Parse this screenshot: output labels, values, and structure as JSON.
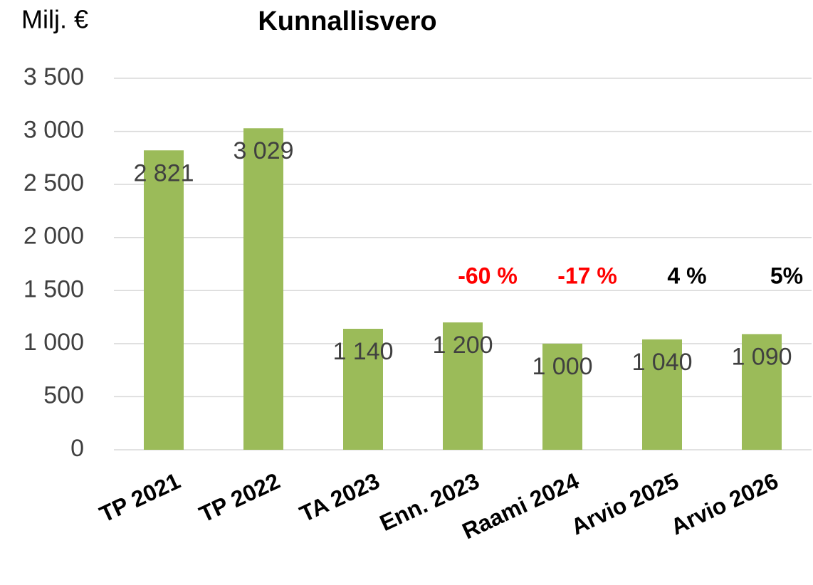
{
  "chart_data": {
    "type": "bar",
    "title": "Kunnallisvero",
    "y_label": "Milj. €",
    "categories": [
      "TP 2021",
      "TP 2022",
      "TA 2023",
      "Enn. 2023",
      "Raami 2024",
      "Arvio 2025",
      "Arvio 2026"
    ],
    "values": [
      2821,
      3029,
      1140,
      1200,
      1000,
      1040,
      1090
    ],
    "value_labels": [
      "2 821",
      "3 029",
      "1 140",
      "1 200",
      "1 000",
      "1 040",
      "1 090"
    ],
    "color": "#9bbb59",
    "ylim": [
      0,
      3500
    ],
    "yticks": [
      0,
      500,
      {
        "value": 1000,
        "label": "1 000"
      },
      {
        "value": 1500,
        "label": "1 500"
      },
      {
        "value": 2000,
        "label": "2 000"
      },
      {
        "value": 2500,
        "label": "2 500"
      },
      {
        "value": 3000,
        "label": "3 000"
      },
      {
        "value": 3500,
        "label": "3 500"
      }
    ],
    "grid": true,
    "annotations": [
      {
        "text": "-60 %",
        "category": "Enn. 2023",
        "color": "#ff0000"
      },
      {
        "text": "-17 %",
        "category": "Raami 2024",
        "color": "#ff0000"
      },
      {
        "text": "4 %",
        "category": "Arvio 2025",
        "color": "#000000"
      },
      {
        "text": "5%",
        "category": "Arvio 2026",
        "color": "#000000"
      }
    ]
  }
}
